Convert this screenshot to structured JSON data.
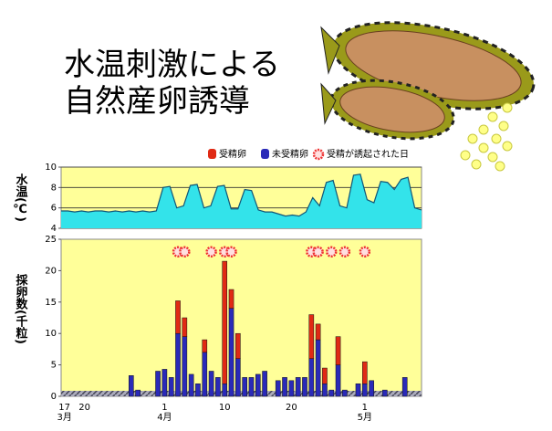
{
  "title_lines": [
    "水温刺激による",
    "自然産卵誘導"
  ],
  "chart_data": [
    {
      "type": "area",
      "ylabel": "水温(℃)",
      "ylim": [
        4,
        10
      ],
      "yticks": [
        4,
        6,
        8,
        10
      ],
      "grid": true,
      "color": "#33e3ea",
      "values": [
        5.7,
        5.7,
        5.6,
        5.7,
        5.6,
        5.7,
        5.7,
        5.6,
        5.7,
        5.6,
        5.7,
        5.6,
        5.7,
        5.6,
        5.7,
        8.0,
        8.1,
        6.0,
        6.2,
        8.2,
        8.3,
        6.0,
        6.2,
        8.1,
        8.2,
        5.9,
        5.9,
        7.8,
        7.7,
        5.8,
        5.6,
        5.6,
        5.4,
        5.2,
        5.3,
        5.2,
        5.6,
        7.0,
        6.2,
        8.5,
        8.7,
        6.2,
        6.0,
        9.2,
        9.3,
        6.8,
        6.5,
        8.6,
        8.5,
        7.8,
        8.8,
        9.0,
        6.0,
        5.8
      ]
    },
    {
      "type": "stacked_bar",
      "ylabel": "採卵数(千粒)",
      "ylim": [
        0,
        25
      ],
      "yticks": [
        0,
        5,
        10,
        15,
        20,
        25
      ],
      "categories": [
        "17",
        null,
        null,
        "20",
        null,
        null,
        null,
        null,
        null,
        null,
        null,
        null,
        null,
        null,
        null,
        "1",
        null,
        null,
        null,
        null,
        null,
        null,
        null,
        null,
        "10",
        null,
        null,
        null,
        null,
        null,
        null,
        null,
        null,
        null,
        "20",
        null,
        null,
        null,
        null,
        null,
        null,
        null,
        null,
        null,
        null,
        "1",
        null,
        null,
        null,
        null,
        null,
        null,
        null,
        null
      ],
      "months": [
        "3月",
        null,
        null,
        null,
        null,
        null,
        null,
        null,
        null,
        null,
        null,
        null,
        null,
        null,
        null,
        "4月",
        null,
        null,
        null,
        null,
        null,
        null,
        null,
        null,
        null,
        null,
        null,
        null,
        null,
        null,
        null,
        null,
        null,
        null,
        null,
        null,
        null,
        null,
        null,
        null,
        null,
        null,
        null,
        null,
        null,
        "5月",
        null,
        null,
        null,
        null,
        null,
        null,
        null,
        null
      ],
      "series": [
        {
          "name": "受精卵",
          "color": "#e02a14",
          "values": [
            0,
            0,
            0,
            0,
            0,
            0,
            0,
            0,
            0,
            0,
            0,
            0,
            0,
            0,
            0,
            0,
            0,
            5.2,
            3,
            0,
            0,
            2,
            0,
            0,
            19.5,
            3,
            4,
            0,
            0,
            0,
            0,
            0,
            0,
            0,
            0,
            0,
            0,
            7,
            2.5,
            2.5,
            0,
            4.5,
            0,
            0,
            0,
            3.5,
            0,
            0,
            0,
            0,
            0,
            0,
            0,
            0
          ]
        },
        {
          "name": "未受精卵",
          "color": "#2a2ab8",
          "values": [
            0,
            0,
            0,
            0,
            0,
            0,
            0,
            0,
            0,
            0,
            3.3,
            1,
            0,
            0,
            4,
            4.3,
            3,
            10,
            9.5,
            3.5,
            2,
            7,
            4,
            3,
            2,
            14,
            6,
            3,
            3,
            3.5,
            4,
            0,
            2.5,
            3,
            2.5,
            3,
            3,
            6,
            9,
            2,
            1,
            5,
            1,
            0,
            2,
            2,
            2.5,
            0,
            1,
            0,
            0,
            3,
            0,
            0
          ]
        }
      ],
      "induced": {
        "name": "受精が誘起された日",
        "color": "#ee3333",
        "days": [
          false,
          false,
          false,
          false,
          false,
          false,
          false,
          false,
          false,
          false,
          false,
          false,
          false,
          false,
          false,
          false,
          false,
          true,
          true,
          false,
          false,
          false,
          true,
          false,
          true,
          true,
          false,
          false,
          false,
          false,
          false,
          false,
          false,
          false,
          false,
          false,
          false,
          true,
          true,
          false,
          true,
          false,
          true,
          false,
          false,
          true,
          false,
          false,
          false,
          false,
          false,
          false,
          false,
          false
        ]
      }
    }
  ]
}
